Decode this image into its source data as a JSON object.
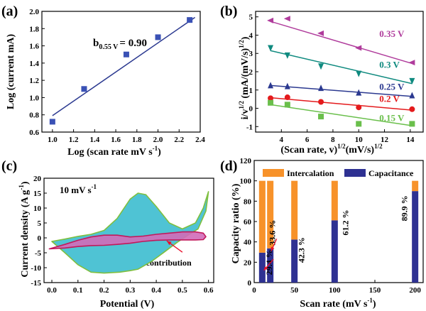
{
  "panels": {
    "a": {
      "tag": "(a)",
      "xlabel": "Log (scan rate mV s",
      "xlabel_sup": "-1",
      "xlabel_end": ")",
      "ylabel": "Log (current mA)",
      "annotation_main": "b",
      "annotation_sub": "0.55 V",
      "annotation_value": "= 0.90"
    },
    "b": {
      "tag": "(b)",
      "xlabel_1": "(Scan rate, v)",
      "xlabel_sup1": "1/2",
      "xlabel_2": "(mV/s)",
      "xlabel_sup2": "1/2",
      "ylabel_1": "i/v",
      "ylabel_sup1": "1/2",
      "ylabel_2": " (mA/(mV/s)",
      "ylabel_sup2": "1/2",
      "ylabel_3": ")"
    },
    "c": {
      "tag": "(c)",
      "xlabel": "Potential (V)",
      "ylabel_1": "Current density (A g",
      "ylabel_sup": "-1",
      "ylabel_2": ")",
      "scan_label": "10 mV s",
      "scan_label_sup": "-1",
      "annotation": "Capacitive contribution"
    },
    "d": {
      "tag": "(d)",
      "xlabel": "Scan rate (mV s",
      "xlabel_sup": "-1",
      "xlabel_end": ")",
      "ylabel": "Capacity ratio (%)",
      "legend_intercalation": "Intercalation",
      "legend_capacitance": "Capacitance"
    }
  },
  "colors": {
    "axis": "#000000",
    "fit_line": "#2b3990",
    "square_marker": "#3a51b5",
    "cv_total_fill": "#4fc3d4",
    "cv_total_edge": "#7fbf3f",
    "cv_capacitive_fill": "#d16bb8",
    "cv_capacitive_edge": "#c2185b",
    "arrow": "#e8102b",
    "intercalation": "#f7922a",
    "capacitance": "#2e3192"
  },
  "chart_data": [
    {
      "panel": "a",
      "type": "scatter",
      "x": [
        1.0,
        1.3,
        1.7,
        2.0,
        2.3
      ],
      "y": [
        0.72,
        1.1,
        1.5,
        1.7,
        1.9
      ],
      "fit_line": {
        "x": [
          1.0,
          2.35
        ],
        "y": [
          0.79,
          1.93
        ]
      },
      "xlim": [
        0.9,
        2.4
      ],
      "ylim": [
        0.6,
        2.0
      ],
      "xticks": [
        "1.0",
        "1.2",
        "1.4",
        "1.6",
        "1.8",
        "2.0",
        "2.2",
        "2.4"
      ],
      "yticks": [
        "0.6",
        "0.8",
        "1.0",
        "1.2",
        "1.4",
        "1.6",
        "1.8",
        "2.0"
      ],
      "marker": "square"
    },
    {
      "panel": "b",
      "type": "scatter",
      "xlim": [
        2,
        15
      ],
      "ylim": [
        -1.3,
        5.3
      ],
      "xticks": [
        "4",
        "6",
        "8",
        "10",
        "12",
        "14"
      ],
      "yticks": [
        "-1",
        "0",
        "1",
        "2",
        "3",
        "4",
        "5"
      ],
      "x": [
        3.16,
        4.47,
        7.07,
        10.0,
        14.14
      ],
      "series": [
        {
          "name": "0.35 V",
          "color": "#b03c9c",
          "marker": "left-triangle",
          "values": [
            4.8,
            4.9,
            4.1,
            3.3,
            2.5
          ],
          "fit": [
            4.75,
            2.45
          ]
        },
        {
          "name": "0.3 V",
          "color": "#0f8a7f",
          "marker": "down-triangle",
          "values": [
            3.3,
            2.9,
            2.3,
            1.9,
            1.5
          ],
          "fit": [
            3.15,
            1.35
          ]
        },
        {
          "name": "0.25 V",
          "color": "#2b3990",
          "marker": "up-triangle",
          "values": [
            1.25,
            1.2,
            1.1,
            0.85,
            0.7
          ],
          "fit": [
            1.25,
            0.65
          ]
        },
        {
          "name": "0.2 V",
          "color": "#e41a1c",
          "marker": "circle",
          "values": [
            0.55,
            0.6,
            0.35,
            0.05,
            -0.05
          ],
          "fit": [
            0.58,
            -0.1
          ]
        },
        {
          "name": "0.15 V",
          "color": "#6abf4b",
          "marker": "square",
          "values": [
            0.3,
            0.2,
            -0.45,
            -0.85,
            -0.85
          ],
          "fit": [
            0.2,
            -0.95
          ]
        }
      ]
    },
    {
      "panel": "c",
      "type": "area",
      "xlim": [
        -0.03,
        0.62
      ],
      "ylim": [
        -15,
        20
      ],
      "xticks": [
        "0.0",
        "0.1",
        "0.2",
        "0.3",
        "0.4",
        "0.5",
        "0.6"
      ],
      "yticks": [
        "-15",
        "-10",
        "-5",
        "0",
        "5",
        "10",
        "15",
        "20"
      ],
      "total_cv": [
        [
          0.0,
          -1.2
        ],
        [
          0.05,
          -0.4
        ],
        [
          0.1,
          0.5
        ],
        [
          0.15,
          1.2
        ],
        [
          0.2,
          2.5
        ],
        [
          0.25,
          6.5
        ],
        [
          0.3,
          13
        ],
        [
          0.33,
          15
        ],
        [
          0.36,
          14.5
        ],
        [
          0.4,
          10.5
        ],
        [
          0.45,
          5
        ],
        [
          0.5,
          3
        ],
        [
          0.55,
          5
        ],
        [
          0.58,
          10
        ],
        [
          0.6,
          15.5
        ],
        [
          0.59,
          9
        ],
        [
          0.56,
          3
        ],
        [
          0.52,
          0.8
        ],
        [
          0.48,
          -1.5
        ],
        [
          0.43,
          -4.8
        ],
        [
          0.38,
          -8
        ],
        [
          0.33,
          -10.5
        ],
        [
          0.3,
          -11
        ],
        [
          0.26,
          -11.5
        ],
        [
          0.2,
          -11.8
        ],
        [
          0.15,
          -11.5
        ],
        [
          0.1,
          -9
        ],
        [
          0.05,
          -5
        ],
        [
          0.0,
          -1.2
        ]
      ],
      "capacitive_cv": [
        [
          -0.01,
          -3.7
        ],
        [
          0.05,
          -2.2
        ],
        [
          0.1,
          -0.8
        ],
        [
          0.15,
          0.3
        ],
        [
          0.2,
          0.9
        ],
        [
          0.25,
          0.9
        ],
        [
          0.3,
          0.3
        ],
        [
          0.35,
          0.6
        ],
        [
          0.4,
          1.2
        ],
        [
          0.45,
          1.6
        ],
        [
          0.5,
          2.0
        ],
        [
          0.55,
          2.0
        ],
        [
          0.58,
          1.6
        ],
        [
          0.59,
          0.4
        ],
        [
          0.58,
          -0.6
        ],
        [
          0.55,
          -0.7
        ],
        [
          0.5,
          -0.7
        ],
        [
          0.45,
          -0.7
        ],
        [
          0.4,
          -0.8
        ],
        [
          0.35,
          -1.2
        ],
        [
          0.3,
          -1.8
        ],
        [
          0.25,
          -2.2
        ],
        [
          0.2,
          -2.5
        ],
        [
          0.15,
          -2.6
        ],
        [
          0.1,
          -2.9
        ],
        [
          0.05,
          -3.4
        ],
        [
          -0.01,
          -3.7
        ]
      ],
      "arrow_from": [
        0.5,
        -4.8
      ],
      "arrow_to": [
        0.44,
        -1.0
      ]
    },
    {
      "panel": "d",
      "type": "bar",
      "xlim": [
        0,
        210
      ],
      "ylim": [
        0,
        120
      ],
      "xticks": [
        "0",
        "50",
        "100",
        "150",
        "200"
      ],
      "yticks": [
        "0",
        "20",
        "40",
        "60",
        "80",
        "100",
        "120"
      ],
      "categories": [
        "10",
        "20",
        "50",
        "100",
        "200"
      ],
      "series": [
        {
          "name": "Capacitance",
          "values": [
            29.4,
            33.6,
            42.3,
            61.2,
            89.9
          ]
        },
        {
          "name": "Intercalation",
          "values": [
            70.6,
            66.4,
            57.7,
            38.8,
            10.1
          ]
        }
      ],
      "labels": [
        "29.4 %",
        "33.6 %",
        "42.3 %",
        "61.2 %",
        "89.9 %"
      ],
      "stacked": true
    }
  ]
}
